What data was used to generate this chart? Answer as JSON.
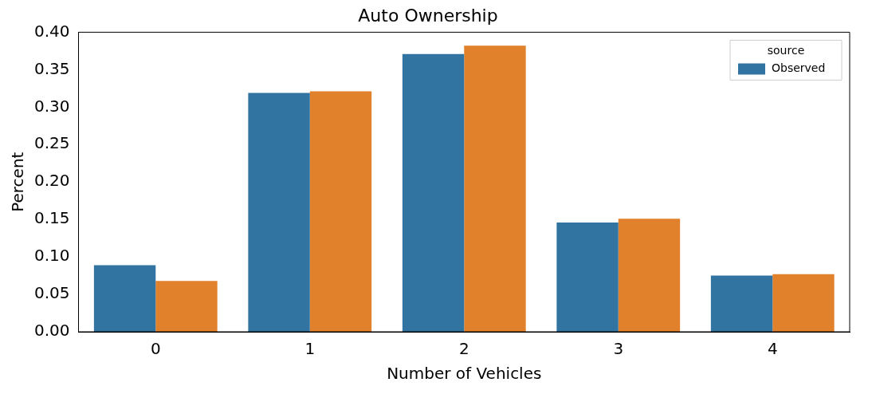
{
  "chart_data": {
    "type": "bar",
    "title": "Auto Ownership",
    "xlabel": "Number of Vehicles",
    "ylabel": "Percent",
    "legend_title": "source",
    "categories": [
      "0",
      "1",
      "2",
      "3",
      "4"
    ],
    "series": [
      {
        "name": "Observed",
        "color": "#3274a1",
        "values": [
          0.089,
          0.319,
          0.371,
          0.146,
          0.075
        ]
      },
      {
        "color": "#e1812c",
        "values": [
          0.068,
          0.321,
          0.382,
          0.151,
          0.077
        ]
      }
    ],
    "ylim": [
      0,
      0.4
    ],
    "yticks": [
      {
        "value": 0,
        "label": "0.00"
      },
      {
        "value": 0.05,
        "label": "0.05"
      },
      {
        "value": 0.1,
        "label": "0.10"
      },
      {
        "value": 0.15,
        "label": "0.15"
      },
      {
        "value": 0.2,
        "label": "0.20"
      },
      {
        "value": 0.25,
        "label": "0.25"
      },
      {
        "value": 0.3,
        "label": "0.30"
      },
      {
        "value": 0.35,
        "label": "0.35"
      },
      {
        "value": 0.4,
        "label": "0.40"
      }
    ],
    "grid": false,
    "legend": "top right"
  }
}
